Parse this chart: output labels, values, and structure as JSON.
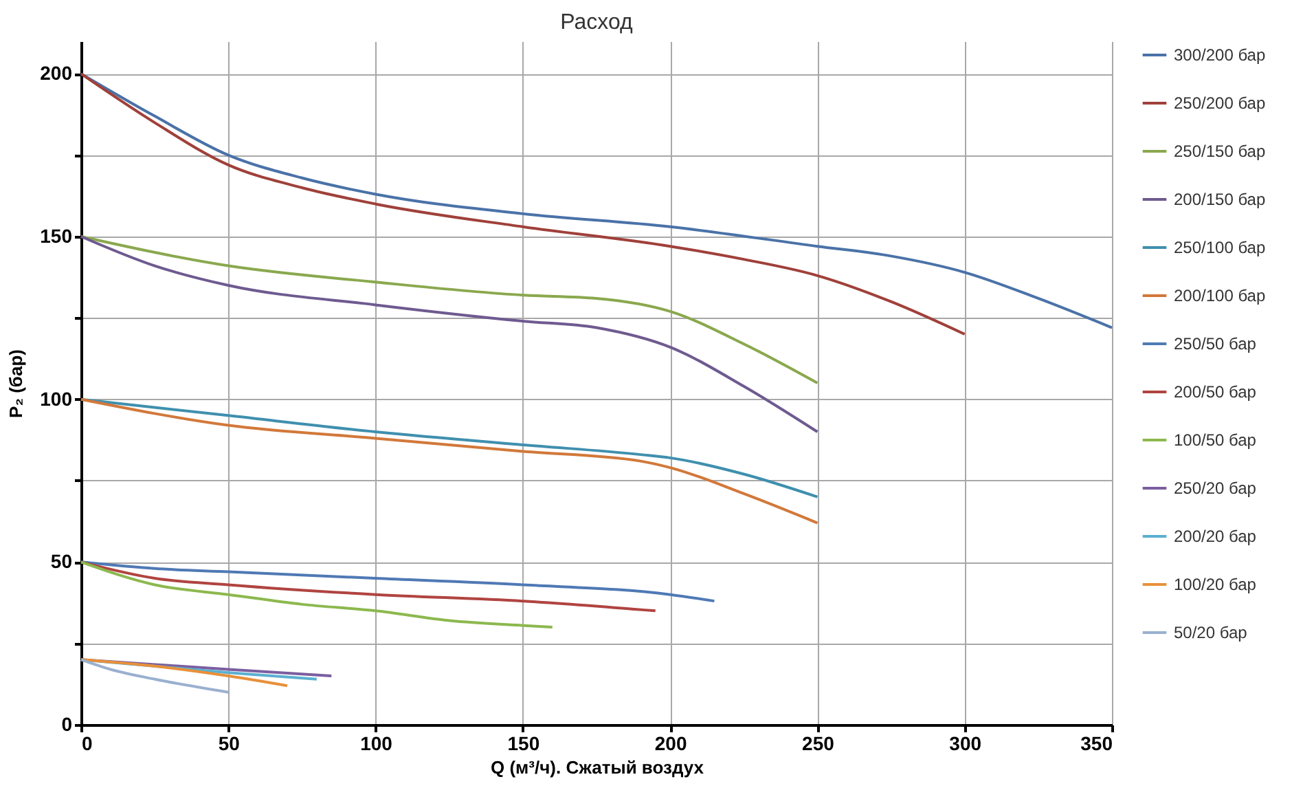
{
  "chart_data": {
    "type": "line",
    "title": "Расход",
    "xlabel": "Q (м³/ч). Сжатый воздух",
    "ylabel": "P₂ (бар)",
    "xlim": [
      0,
      350
    ],
    "xticks": [
      0,
      50,
      100,
      150,
      200,
      250,
      300,
      350
    ],
    "ylim": [
      0,
      210
    ],
    "yticks": [
      0,
      {
        "value": 25,
        "label": null
      },
      50,
      {
        "value": 75,
        "label": null
      },
      100,
      {
        "value": 125,
        "label": null
      },
      150,
      {
        "value": 175,
        "label": null
      },
      200
    ],
    "grid": true,
    "legend": "right",
    "series": [
      {
        "name": "300/200 бар",
        "color": "#4a72a8",
        "x": [
          0,
          25,
          50,
          75,
          100,
          150,
          200,
          250,
          275,
          300,
          325,
          350
        ],
        "values": [
          200,
          187,
          175,
          168,
          163,
          157,
          153,
          147,
          144,
          139,
          131,
          122
        ]
      },
      {
        "name": "250/200 бар",
        "color": "#a0403a",
        "x": [
          0,
          25,
          50,
          75,
          100,
          150,
          200,
          225,
          250,
          275,
          300
        ],
        "values": [
          200,
          185,
          172,
          165,
          160,
          153,
          147,
          143,
          138,
          130,
          120
        ]
      },
      {
        "name": "250/150 бар",
        "color": "#8aa84e",
        "x": [
          0,
          50,
          100,
          150,
          175,
          200,
          225,
          250
        ],
        "values": [
          150,
          141,
          136,
          132,
          131,
          127,
          117,
          105
        ]
      },
      {
        "name": "200/150 бар",
        "color": "#6e5a90",
        "x": [
          0,
          25,
          50,
          100,
          150,
          175,
          200,
          225,
          250
        ],
        "values": [
          150,
          141,
          135,
          129,
          124,
          122,
          116,
          104,
          90
        ]
      },
      {
        "name": "250/100 бар",
        "color": "#3f8fae",
        "x": [
          0,
          50,
          100,
          150,
          190,
          200,
          225,
          250
        ],
        "values": [
          100,
          95,
          90,
          86,
          83,
          82,
          77,
          70
        ]
      },
      {
        "name": "200/100 бар",
        "color": "#d2783a",
        "x": [
          0,
          50,
          100,
          150,
          190,
          200,
          225,
          250
        ],
        "values": [
          100,
          92,
          88,
          84,
          81,
          79,
          71,
          62
        ]
      },
      {
        "name": "250/50 бар",
        "color": "#4f79b5",
        "x": [
          0,
          25,
          50,
          100,
          150,
          200,
          215
        ],
        "values": [
          50,
          48,
          47,
          45,
          43,
          40,
          38
        ]
      },
      {
        "name": "200/50 бар",
        "color": "#b04440",
        "x": [
          0,
          25,
          50,
          100,
          150,
          195
        ],
        "values": [
          50,
          45,
          43,
          40,
          38,
          35
        ]
      },
      {
        "name": "100/50 бар",
        "color": "#8cb84e",
        "x": [
          0,
          25,
          50,
          75,
          100,
          125,
          150,
          160
        ],
        "values": [
          50,
          43,
          40,
          37,
          35,
          32,
          30.5,
          30
        ]
      },
      {
        "name": "250/20 бар",
        "color": "#7a5ea0",
        "x": [
          0,
          25,
          50,
          85
        ],
        "values": [
          20,
          18.5,
          17,
          15
        ]
      },
      {
        "name": "200/20 бар",
        "color": "#5bb0d0",
        "x": [
          0,
          50,
          80
        ],
        "values": [
          20,
          16,
          14
        ]
      },
      {
        "name": "100/20 бар",
        "color": "#e8903a",
        "x": [
          0,
          25,
          50,
          70
        ],
        "values": [
          20,
          18,
          15,
          12
        ]
      },
      {
        "name": "50/20 бар",
        "color": "#9ab0d0",
        "x": [
          0,
          10,
          25,
          50
        ],
        "values": [
          20,
          17,
          14,
          10
        ]
      }
    ]
  }
}
